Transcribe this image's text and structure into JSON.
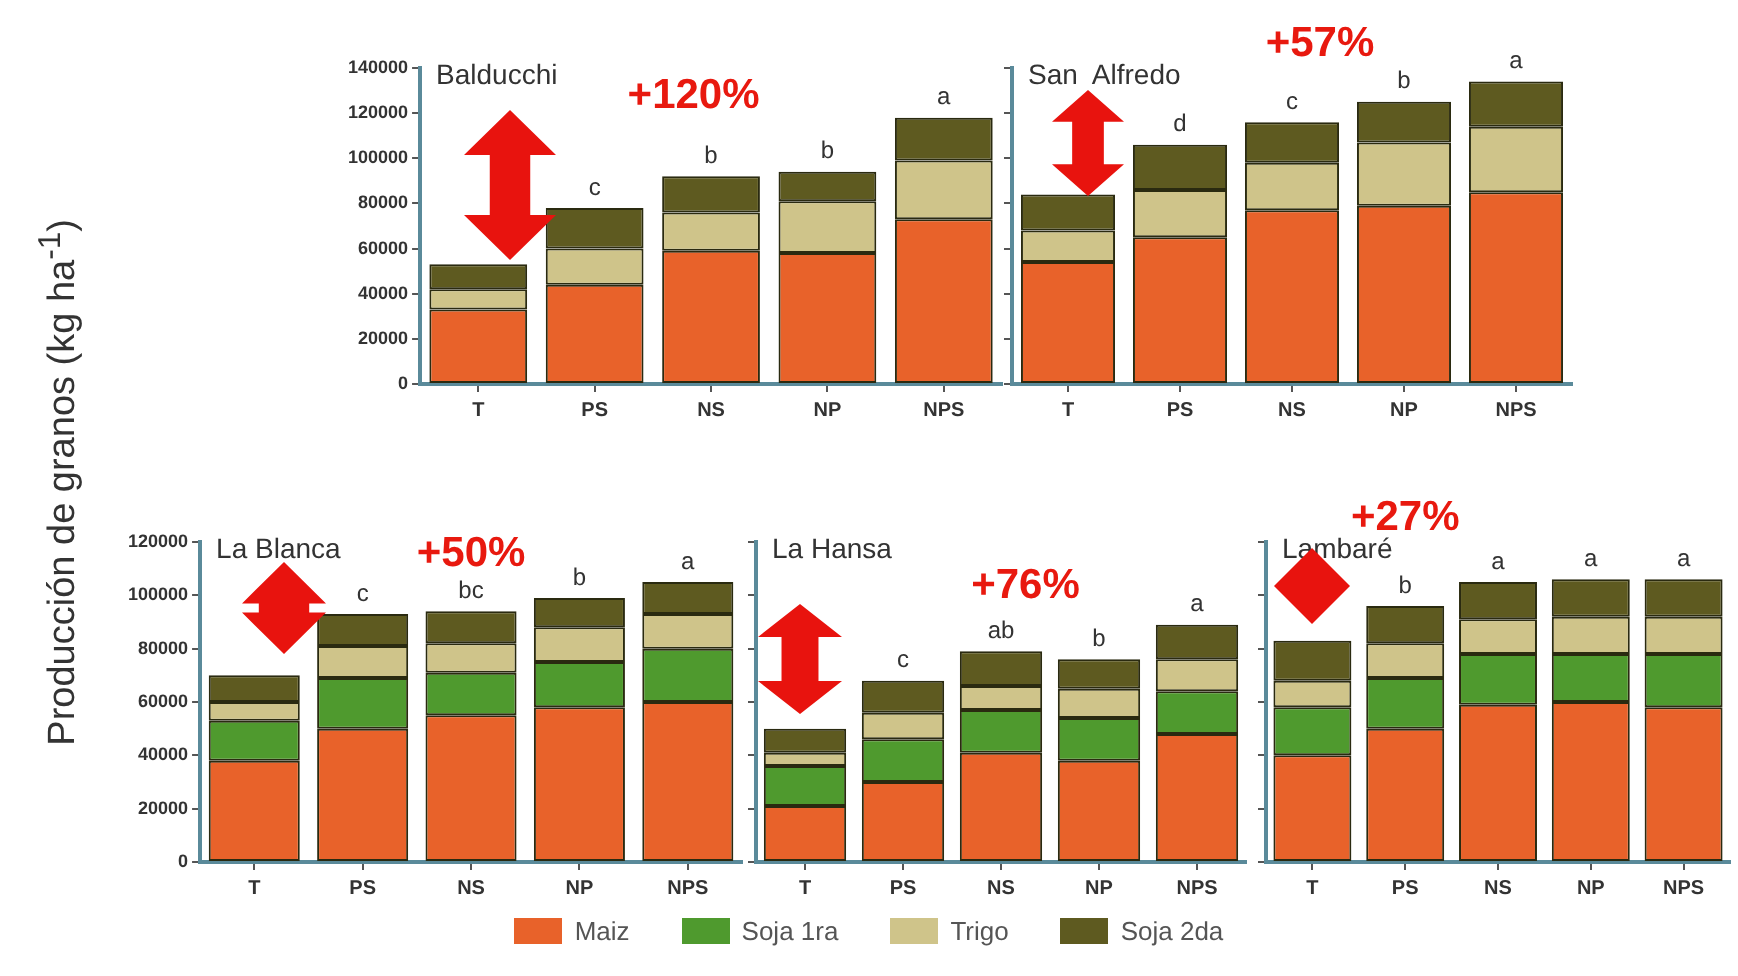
{
  "chart_data": [
    {
      "type": "bar",
      "title": "Balducchi",
      "legend": "bottom",
      "ylabel": "Producción de granos (kg ha$^{-1}$)",
      "categories": [
        "T",
        "PS",
        "NS",
        "NP",
        "NPS"
      ],
      "stacked": true,
      "ylim": [
        0,
        140000
      ],
      "yticks": [
        0,
        20000,
        40000,
        60000,
        80000,
        100000,
        120000,
        140000
      ],
      "series": [
        {
          "name": "Maiz",
          "color": "#e8622a",
          "values": [
            33000,
            44000,
            59000,
            58000,
            73000
          ]
        },
        {
          "name": "Trigo",
          "color": "#cfc48a",
          "values": [
            9000,
            16000,
            17000,
            23000,
            26000
          ]
        },
        {
          "name": "Soja 2da",
          "color": "#5e5a20",
          "values": [
            11000,
            18000,
            16000,
            13000,
            19000
          ]
        }
      ],
      "annotations": [
        "+120%",
        {
          "text": "c",
          "x": "PS",
          "y": 78000
        },
        {
          "text": "b",
          "x": "NS",
          "y": 92000
        },
        {
          "text": "b",
          "x": "NP",
          "y": 94000
        },
        {
          "text": "a",
          "x": "NPS",
          "y": 118000
        }
      ]
    },
    {
      "type": "bar",
      "title": "San  Alfredo",
      "legend": "bottom",
      "categories": [
        "T",
        "PS",
        "NS",
        "NP",
        "NPS"
      ],
      "stacked": true,
      "ylim": [
        0,
        140000
      ],
      "yticks": [
        0,
        20000,
        40000,
        60000,
        80000,
        100000,
        120000,
        140000
      ],
      "tick_labels": "x",
      "series": [
        {
          "name": "Maiz",
          "color": "#e8622a",
          "values": [
            54000,
            65000,
            77000,
            79000,
            85000
          ]
        },
        {
          "name": "Trigo",
          "color": "#cfc48a",
          "values": [
            14000,
            21000,
            21000,
            28000,
            29000
          ]
        },
        {
          "name": "Soja 2da",
          "color": "#5e5a20",
          "values": [
            16000,
            20000,
            18000,
            18000,
            20000
          ]
        }
      ],
      "annotations": [
        "+57%",
        {
          "text": "d",
          "x": "PS",
          "y": 106000
        },
        {
          "text": "c",
          "x": "NS",
          "y": 116000
        },
        {
          "text": "b",
          "x": "NP",
          "y": 125000
        },
        {
          "text": "a",
          "x": "NPS",
          "y": 134000
        }
      ]
    },
    {
      "type": "bar",
      "title": "La Blanca",
      "legend": "bottom",
      "categories": [
        "T",
        "PS",
        "NS",
        "NP",
        "NPS"
      ],
      "stacked": true,
      "ylim": [
        0,
        120000
      ],
      "yticks": [
        0,
        20000,
        40000,
        60000,
        80000,
        100000,
        120000
      ],
      "series": [
        {
          "name": "Maiz",
          "color": "#e8622a",
          "values": [
            38000,
            50000,
            55000,
            58000,
            60000
          ]
        },
        {
          "name": "Soja 1ra",
          "color": "#4f9a2e",
          "values": [
            15000,
            19000,
            16000,
            17000,
            20000
          ]
        },
        {
          "name": "Trigo",
          "color": "#cfc48a",
          "values": [
            7000,
            12000,
            11000,
            13000,
            13000
          ]
        },
        {
          "name": "Soja 2da",
          "color": "#5e5a20",
          "values": [
            10000,
            12000,
            12000,
            11000,
            12000
          ]
        }
      ],
      "annotations": [
        "+50%",
        {
          "text": "c",
          "x": "PS",
          "y": 93000
        },
        {
          "text": "bc",
          "x": "NS",
          "y": 94000
        },
        {
          "text": "b",
          "x": "NP",
          "y": 99000
        },
        {
          "text": "a",
          "x": "NPS",
          "y": 105000
        }
      ]
    },
    {
      "type": "bar",
      "title": "La Hansa",
      "categories": [
        "T",
        "PS",
        "NS",
        "NP",
        "NPS"
      ],
      "stacked": true,
      "ylim": [
        0,
        120000
      ],
      "yticks": [
        0,
        20000,
        40000,
        60000,
        80000,
        100000,
        120000
      ],
      "tick_labels": "x",
      "legend": "bottom",
      "series": [
        {
          "name": "Maiz",
          "color": "#e8622a",
          "values": [
            21000,
            30000,
            41000,
            38000,
            48000
          ]
        },
        {
          "name": "Soja 1ra",
          "color": "#4f9a2e",
          "values": [
            15000,
            16000,
            16000,
            16000,
            16000
          ]
        },
        {
          "name": "Trigo",
          "color": "#cfc48a",
          "values": [
            5000,
            10000,
            9000,
            11000,
            12000
          ]
        },
        {
          "name": "Soja 2da",
          "color": "#5e5a20",
          "values": [
            9000,
            12000,
            13000,
            11000,
            13000
          ]
        }
      ],
      "annotations": [
        "+76%",
        {
          "text": "c",
          "x": "PS",
          "y": 68000
        },
        {
          "text": "ab",
          "x": "NS",
          "y": 79000
        },
        {
          "text": "b",
          "x": "NP",
          "y": 76000
        },
        {
          "text": "a",
          "x": "NPS",
          "y": 89000
        }
      ]
    },
    {
      "type": "bar",
      "title": "Lambaré",
      "legend": "bottom",
      "categories": [
        "T",
        "PS",
        "NS",
        "NP",
        "NPS"
      ],
      "stacked": true,
      "ylim": [
        0,
        120000
      ],
      "yticks": [
        0,
        20000,
        40000,
        60000,
        80000,
        100000,
        120000
      ],
      "tick_labels": "x",
      "series": [
        {
          "name": "Maiz",
          "color": "#e8622a",
          "values": [
            40000,
            50000,
            59000,
            60000,
            58000
          ]
        },
        {
          "name": "Soja 1ra",
          "color": "#4f9a2e",
          "values": [
            18000,
            19000,
            19000,
            18000,
            20000
          ]
        },
        {
          "name": "Trigo",
          "color": "#cfc48a",
          "values": [
            10000,
            13000,
            13000,
            14000,
            14000
          ]
        },
        {
          "name": "Soja 2da",
          "color": "#5e5a20",
          "values": [
            15000,
            14000,
            14000,
            14000,
            14000
          ]
        }
      ],
      "annotations": [
        "+27%",
        {
          "text": "b",
          "x": "PS",
          "y": 96000
        },
        {
          "text": "a",
          "x": "NS",
          "y": 105000
        },
        {
          "text": "a",
          "x": "NP",
          "y": 106000
        },
        {
          "text": "a",
          "x": "NPS",
          "y": 106000
        }
      ]
    }
  ]
}
